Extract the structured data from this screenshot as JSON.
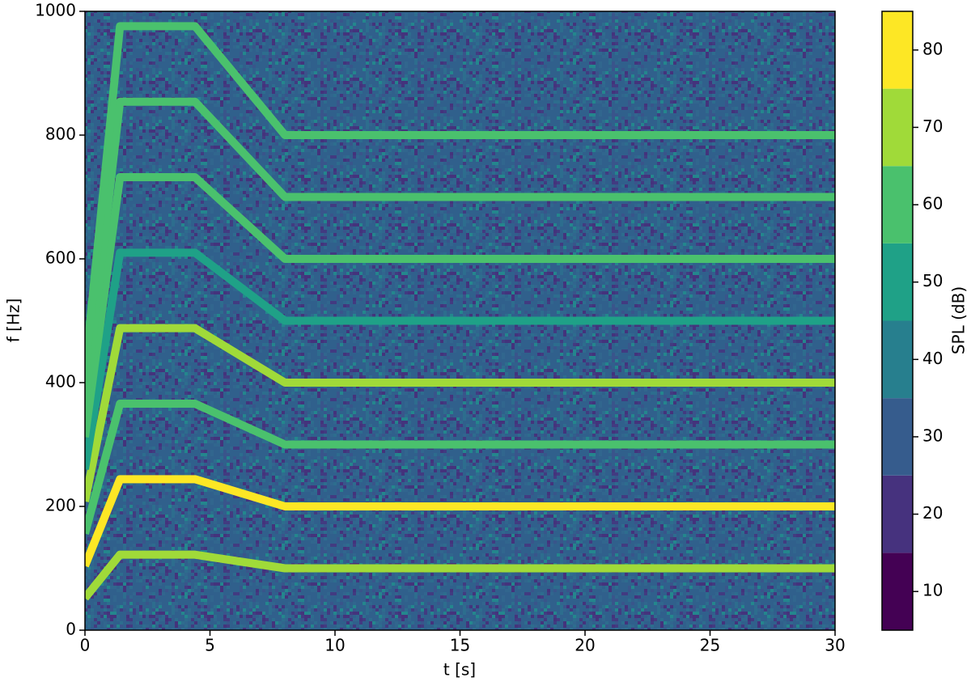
{
  "chart_data": {
    "type": "spectrogram",
    "xlabel": "t [s]",
    "ylabel": "f [Hz]",
    "x": [
      0,
      1.4,
      4.4,
      8,
      30
    ],
    "series": [
      {
        "values": [
          52,
          122,
          122,
          100,
          100
        ],
        "level": 65
      },
      {
        "values": [
          104,
          244,
          244,
          200,
          200
        ],
        "level": 82
      },
      {
        "values": [
          156,
          366,
          366,
          300,
          300
        ],
        "level": 58
      },
      {
        "values": [
          208,
          488,
          488,
          400,
          400
        ],
        "level": 70
      },
      {
        "values": [
          260,
          610,
          610,
          500,
          500
        ],
        "level": 48
      },
      {
        "values": [
          312,
          732,
          732,
          600,
          600
        ],
        "level": 58
      },
      {
        "values": [
          364,
          854,
          854,
          700,
          700
        ],
        "level": 55
      },
      {
        "values": [
          416,
          976,
          976,
          800,
          800
        ],
        "level": 55
      }
    ],
    "xlim": [
      0,
      30
    ],
    "xticks": [
      0,
      5,
      10,
      15,
      20,
      25,
      30
    ],
    "ylim": [
      0,
      1000
    ],
    "yticks": [
      0,
      200,
      400,
      600,
      800,
      1000
    ],
    "colorbar": {
      "label": "SPL (dB)",
      "levels": [
        5,
        15,
        25,
        35,
        45,
        55,
        65,
        75,
        85
      ],
      "colors": [
        "#440154",
        "#46327e",
        "#365c8d",
        "#277f8e",
        "#1fa187",
        "#4ac16d",
        "#a0da39",
        "#fde725"
      ],
      "ticks": [
        10,
        20,
        30,
        40,
        50,
        60,
        70,
        80
      ]
    }
  }
}
